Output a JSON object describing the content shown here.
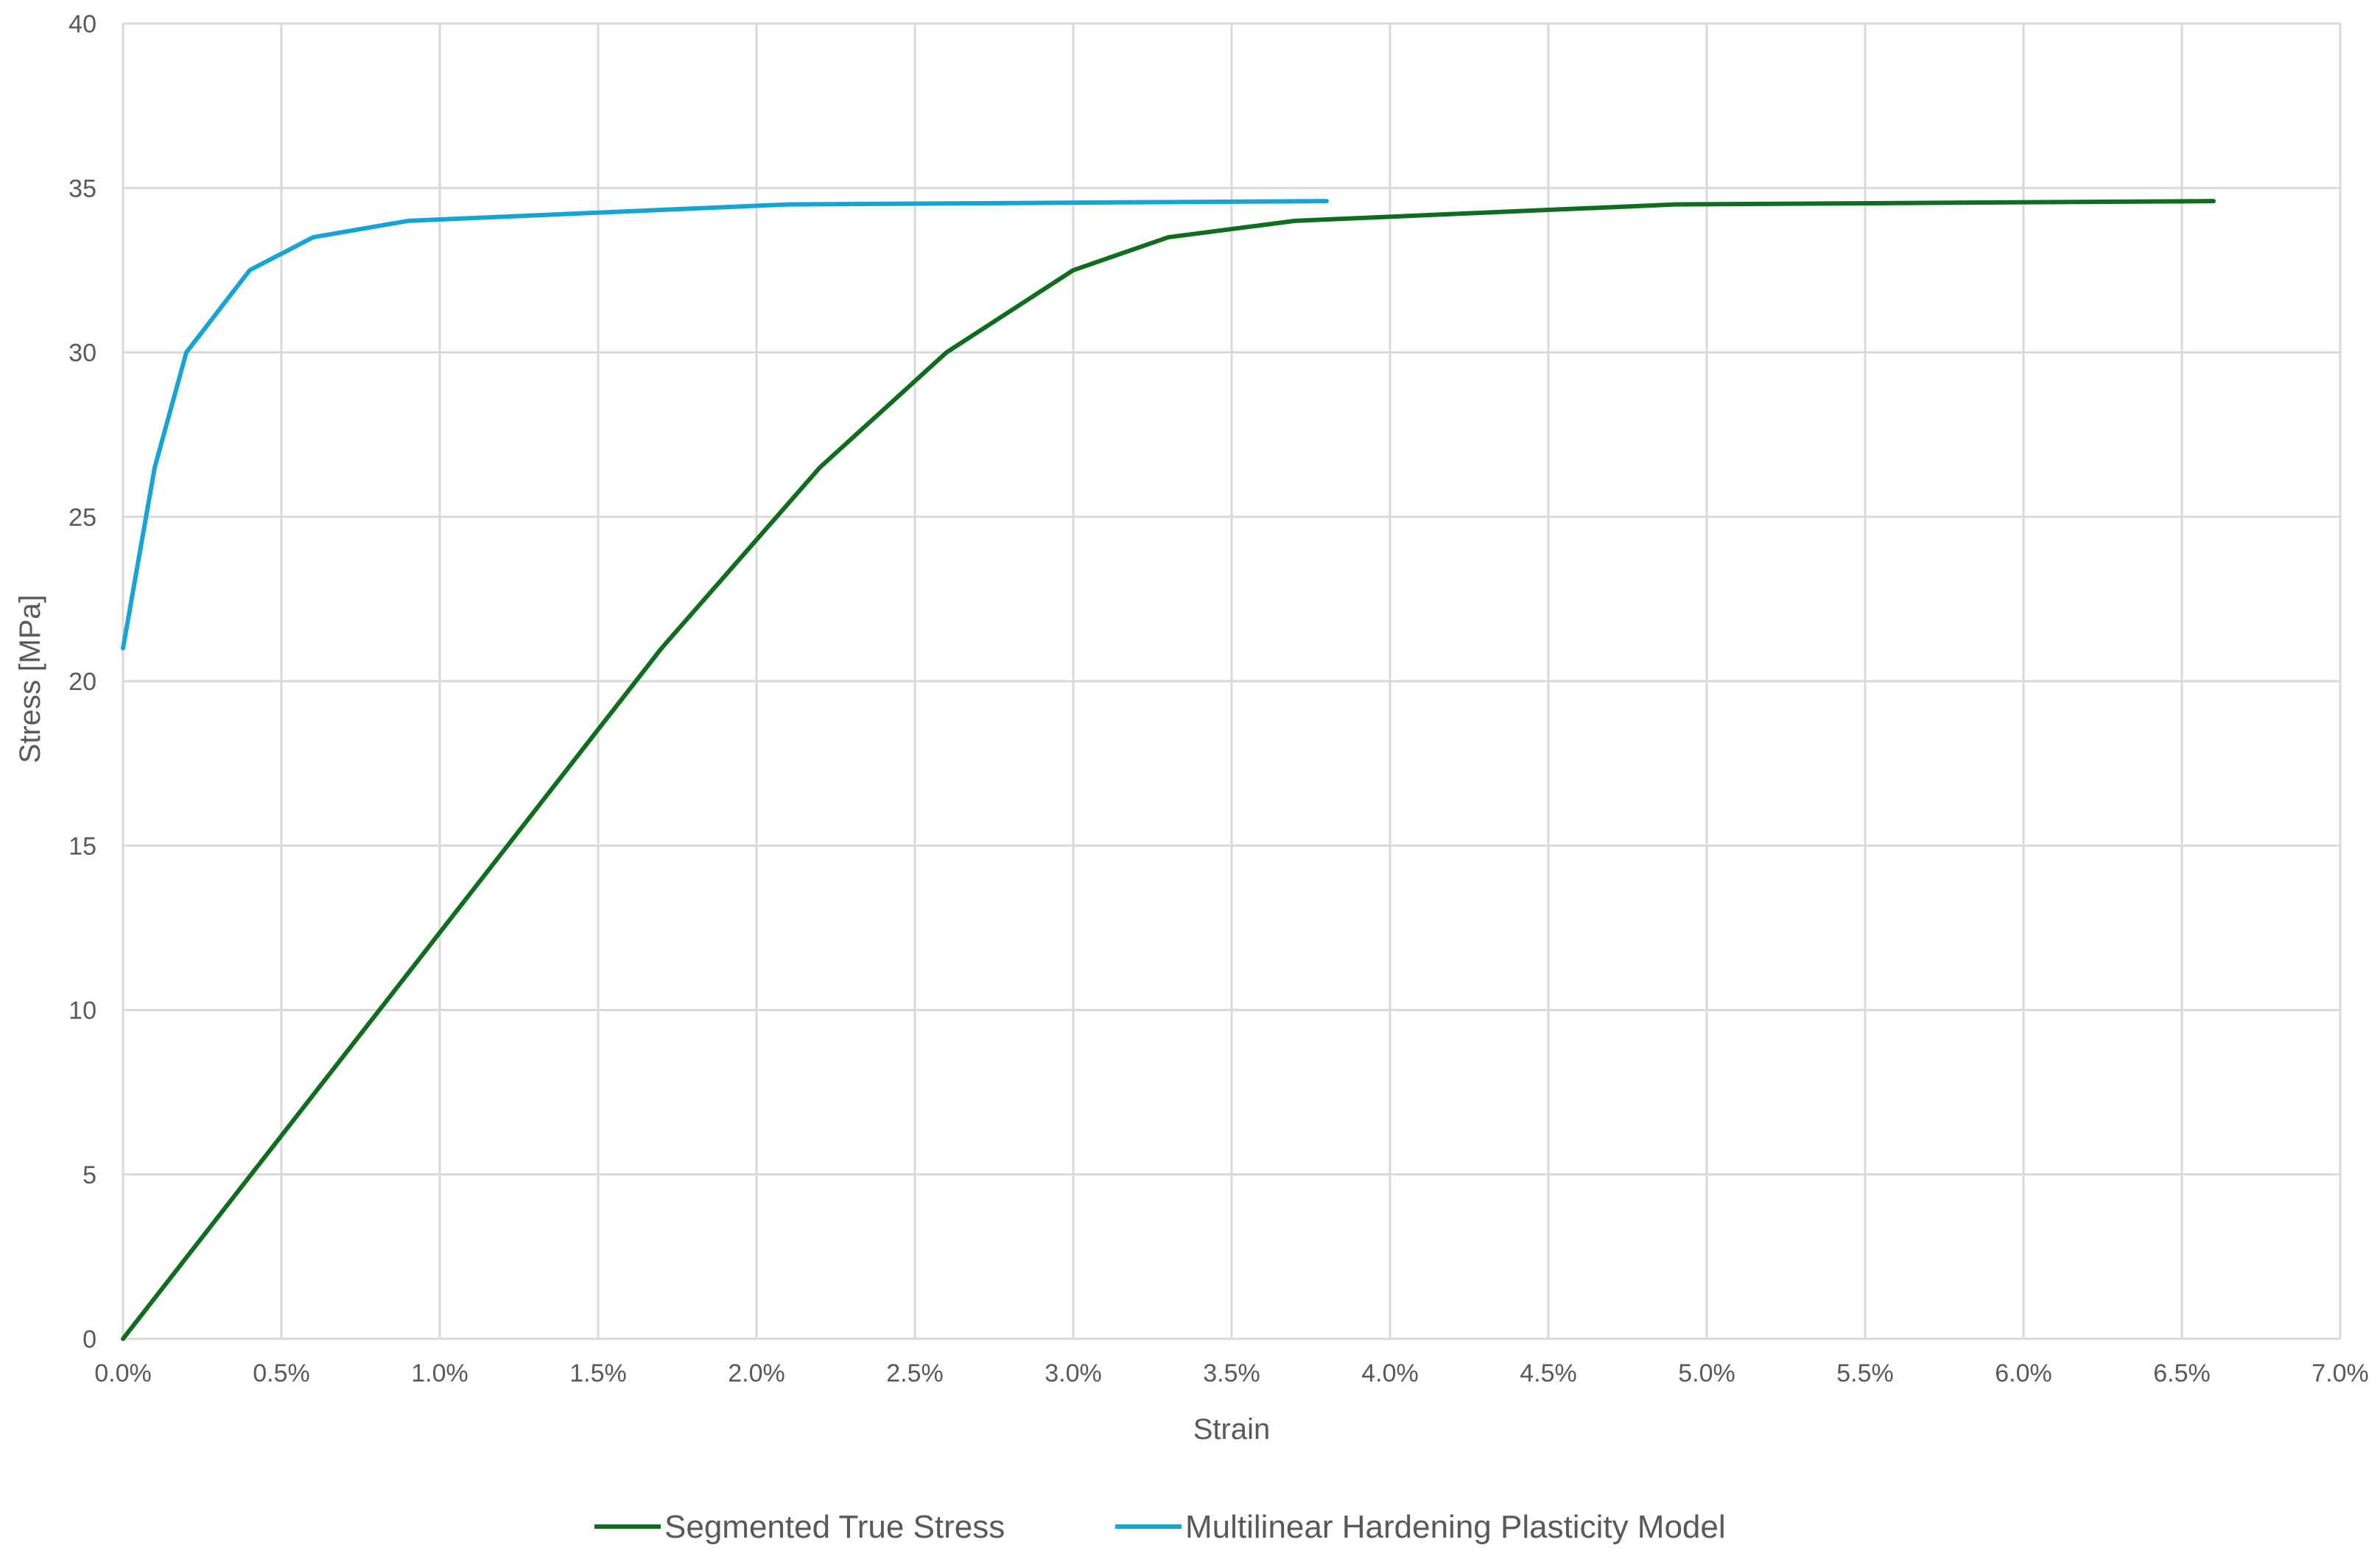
{
  "chart_data": {
    "type": "line",
    "title": "",
    "xlabel": "Strain",
    "ylabel": "Stress [MPa]",
    "xlim": [
      0,
      0.07
    ],
    "ylim": [
      0,
      40
    ],
    "x_ticks": [
      0,
      0.005,
      0.01,
      0.015,
      0.02,
      0.025,
      0.03,
      0.035,
      0.04,
      0.045,
      0.05,
      0.055,
      0.06,
      0.065,
      0.07
    ],
    "x_tick_labels": [
      "0.0%",
      "0.5%",
      "1.0%",
      "1.5%",
      "2.0%",
      "2.5%",
      "3.0%",
      "3.5%",
      "4.0%",
      "4.5%",
      "5.0%",
      "5.5%",
      "6.0%",
      "6.5%",
      "7.0%"
    ],
    "y_ticks": [
      0,
      5,
      10,
      15,
      20,
      25,
      30,
      35,
      40
    ],
    "y_tick_labels": [
      "0",
      "5",
      "10",
      "15",
      "20",
      "25",
      "30",
      "35",
      "40"
    ],
    "grid": true,
    "legend_position": "bottom",
    "series": [
      {
        "name": "Segmented True Stress",
        "color": "#0f6e1e",
        "x": [
          0,
          0.017,
          0.022,
          0.026,
          0.03,
          0.033,
          0.037,
          0.049,
          0.066
        ],
        "y": [
          0,
          21.0,
          26.5,
          30.0,
          32.5,
          33.5,
          34.0,
          34.5,
          34.6
        ]
      },
      {
        "name": "Multilinear Hardening Plasticity Model",
        "color": "#16a4d8",
        "x": [
          0,
          0.001,
          0.002,
          0.004,
          0.006,
          0.009,
          0.021,
          0.038
        ],
        "y": [
          21.0,
          26.5,
          30.0,
          32.5,
          33.5,
          34.0,
          34.5,
          34.6
        ]
      }
    ]
  }
}
